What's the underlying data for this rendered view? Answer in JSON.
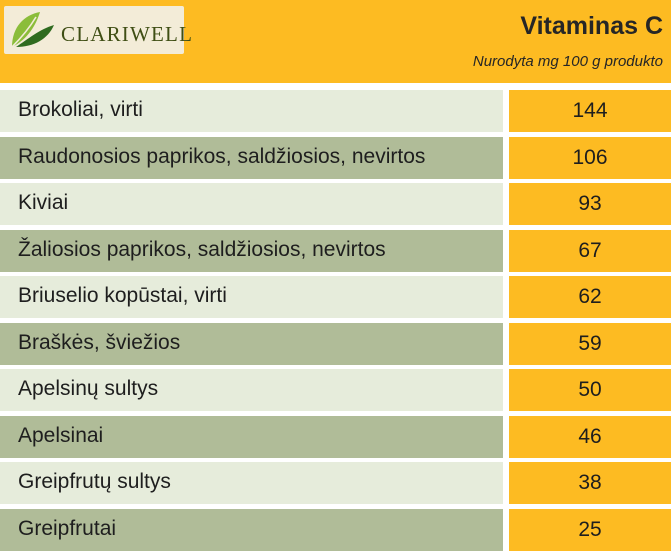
{
  "brand": {
    "name": "CLARIWELL",
    "logo_icon": "leaf-icon",
    "colors": {
      "leaf_light": "#8bbd3a",
      "leaf_dark": "#2f6b1f",
      "text": "#3f4e14"
    }
  },
  "colors": {
    "header_bg": "#fdbb22",
    "value_bg": "#fdbb22",
    "row_light": "#e6ecdb",
    "row_dark": "#b0bc98"
  },
  "chart_data": {
    "type": "table",
    "title": "Vitaminas C",
    "subtitle": "Nurodyta mg 100 g produkto",
    "rows": [
      {
        "label": "Brokoliai, virti",
        "value": 144
      },
      {
        "label": "Raudonosios paprikos, saldžiosios, nevirtos",
        "value": 106
      },
      {
        "label": "Kiviai",
        "value": 93
      },
      {
        "label": "Žaliosios paprikos, saldžiosios, nevirtos",
        "value": 67
      },
      {
        "label": "Briuselio kopūstai, virti",
        "value": 62
      },
      {
        "label": "Braškės, šviežios",
        "value": 59
      },
      {
        "label": "Apelsinų sultys",
        "value": 50
      },
      {
        "label": "Apelsinai",
        "value": 46
      },
      {
        "label": "Greipfrutų sultys",
        "value": 38
      },
      {
        "label": "Greipfrutai",
        "value": 25
      }
    ]
  }
}
